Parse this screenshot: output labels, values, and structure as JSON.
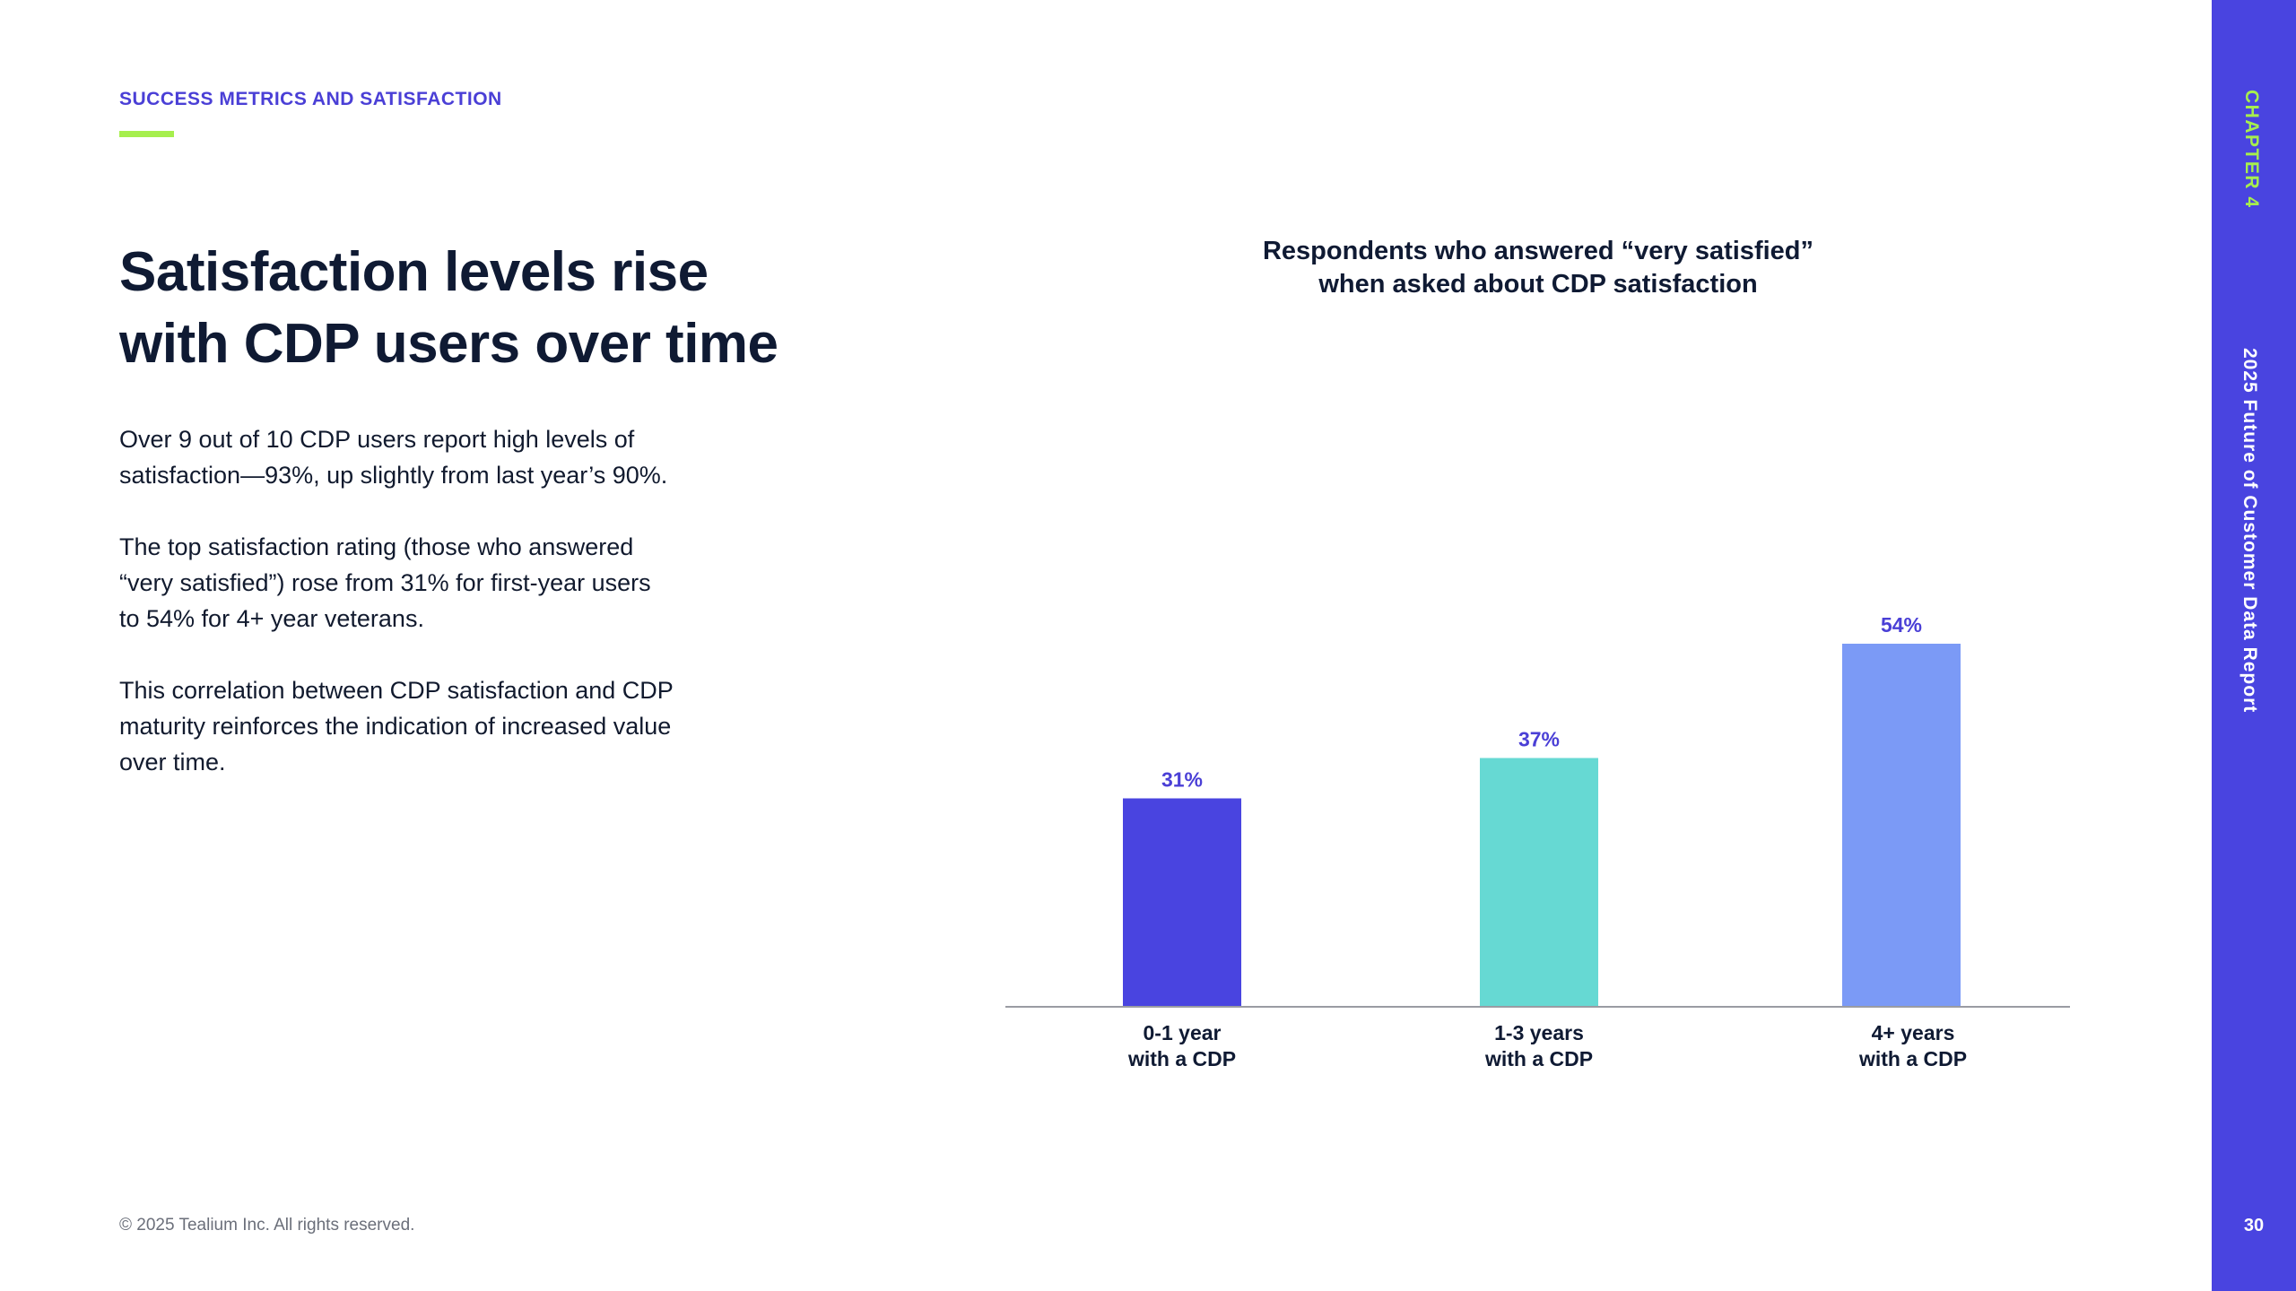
{
  "header": {
    "section_label": "SUCCESS METRICS AND SATISFACTION"
  },
  "headline": {
    "line1": "Satisfaction levels rise",
    "line2": "with CDP users over time"
  },
  "body": {
    "paragraph1_line1": "Over 9 out of 10 CDP users report high levels of",
    "paragraph1_line2": "satisfaction—93%, up slightly from last year’s 90%.",
    "paragraph2_line1": "The top satisfaction rating (those who answered",
    "paragraph2_line2": "“very satisfied”) rose from 31% for first-year users",
    "paragraph2_line3": "to 54% for 4+ year veterans.",
    "paragraph3_line1": "This correlation between CDP satisfaction and CDP",
    "paragraph3_line2": "maturity reinforces the indication of increased value",
    "paragraph3_line3": "over time."
  },
  "footer": {
    "copyright": "© 2025 Tealium Inc. All rights reserved."
  },
  "sidebar": {
    "chapter": "CHAPTER 4",
    "report_title": "2025 Future of Customer Data Report",
    "page_number": "30"
  },
  "colors": {
    "accent": "#4944e0",
    "underline": "#a6ef4d",
    "bar1": "#4944e0",
    "bar2": "#66d9d3",
    "bar3": "#7b9af6",
    "value_label": "#4a3fd6",
    "axis": "#9a9ca3"
  },
  "chart_data": {
    "type": "bar",
    "title_line1": "Respondents who answered “very satisfied”",
    "title_line2": "when asked about CDP satisfaction",
    "categories": [
      [
        "0-1 year",
        "with a CDP"
      ],
      [
        "1-3 years",
        "with a CDP"
      ],
      [
        "4+ years",
        "with a CDP"
      ]
    ],
    "values": [
      31,
      37,
      54
    ],
    "value_labels": [
      "31%",
      "37%",
      "54%"
    ],
    "ylim": [
      0,
      60
    ],
    "xlabel": "",
    "ylabel": "",
    "grid": false
  }
}
